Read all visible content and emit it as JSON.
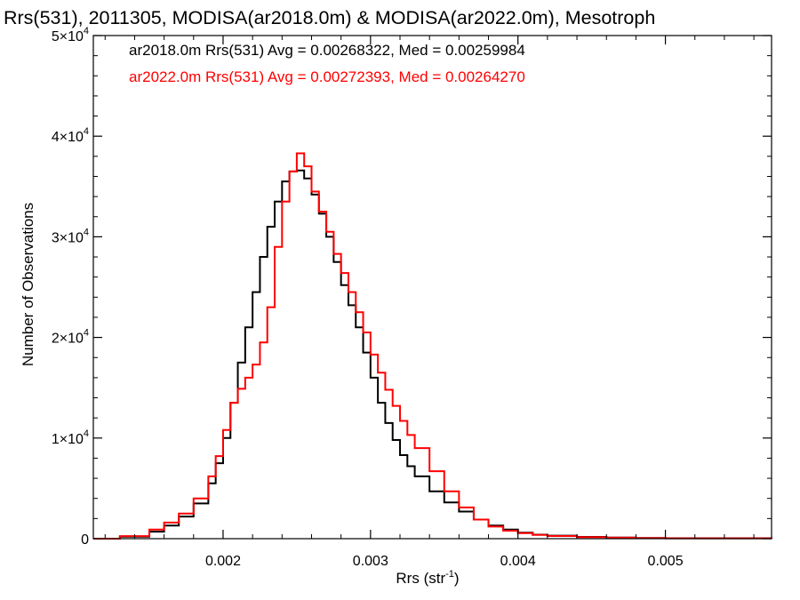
{
  "chart_data": {
    "type": "line",
    "title": "Rrs(531), 2011305, MODISA(ar2018.0m) & MODISA(ar2022.0m), Mesotroph",
    "xlabel": "Rrs (str",
    "xlabel_sup": "-1",
    "xlabel_close": ")",
    "ylabel": "Number of Observations",
    "xlim": [
      0.00112,
      0.00572
    ],
    "ylim": [
      0,
      50000
    ],
    "xticks": [
      {
        "value": 0.002,
        "label": "0.002"
      },
      {
        "value": 0.003,
        "label": "0.003"
      },
      {
        "value": 0.004,
        "label": "0.004"
      },
      {
        "value": 0.005,
        "label": "0.005"
      }
    ],
    "yticks": [
      {
        "value": 0,
        "label": "0"
      },
      {
        "value": 10000,
        "mant": "1×10",
        "exp": "4"
      },
      {
        "value": 20000,
        "mant": "2×10",
        "exp": "4"
      },
      {
        "value": 30000,
        "mant": "3×10",
        "exp": "4"
      },
      {
        "value": 40000,
        "mant": "4×10",
        "exp": "4"
      },
      {
        "value": 50000,
        "mant": "5×10",
        "exp": "4"
      }
    ],
    "grid": false,
    "legend": "top-left",
    "step": true,
    "annotations": [
      {
        "text": "ar2018.0m Rrs(531) Avg = 0.00268322, Med = 0.00259984",
        "color": "#000000"
      },
      {
        "text": "ar2022.0m Rrs(531) Avg = 0.00272393, Med = 0.00264270",
        "color": "#ff0000"
      }
    ],
    "series": [
      {
        "color": "#000000",
        "x": [
          0.00112,
          0.0013,
          0.0015,
          0.0016,
          0.0017,
          0.0018,
          0.0019,
          0.00195,
          0.002,
          0.00205,
          0.0021,
          0.00215,
          0.0022,
          0.00225,
          0.0023,
          0.00235,
          0.0024,
          0.00245,
          0.0025,
          0.00255,
          0.0026,
          0.00265,
          0.0027,
          0.00275,
          0.0028,
          0.00285,
          0.0029,
          0.00295,
          0.003,
          0.00305,
          0.0031,
          0.00315,
          0.0032,
          0.00325,
          0.0033,
          0.0034,
          0.0035,
          0.0036,
          0.0037,
          0.0038,
          0.0039,
          0.004,
          0.0041,
          0.0042,
          0.0044,
          0.0046,
          0.0048,
          0.005,
          0.00572
        ],
        "values": [
          0,
          200,
          700,
          1300,
          2200,
          3500,
          5500,
          7500,
          10000,
          13500,
          17500,
          21000,
          24500,
          28000,
          31000,
          33500,
          35500,
          36500,
          36600,
          35800,
          34200,
          32300,
          30000,
          27500,
          25200,
          23200,
          21000,
          18500,
          16000,
          13500,
          11500,
          9800,
          8300,
          7200,
          6200,
          4700,
          3600,
          2700,
          1900,
          1300,
          900,
          600,
          400,
          300,
          180,
          110,
          70,
          40,
          0
        ]
      },
      {
        "color": "#ff0000",
        "x": [
          0.00112,
          0.0013,
          0.0015,
          0.0016,
          0.0017,
          0.0018,
          0.0019,
          0.00195,
          0.002,
          0.00205,
          0.0021,
          0.00215,
          0.0022,
          0.00225,
          0.0023,
          0.00235,
          0.0024,
          0.00245,
          0.0025,
          0.00255,
          0.0026,
          0.00265,
          0.0027,
          0.00275,
          0.0028,
          0.00285,
          0.0029,
          0.00295,
          0.003,
          0.00305,
          0.0031,
          0.00315,
          0.0032,
          0.00325,
          0.0033,
          0.0034,
          0.0035,
          0.0036,
          0.0037,
          0.0038,
          0.0039,
          0.004,
          0.0041,
          0.0042,
          0.0044,
          0.0046,
          0.0048,
          0.005,
          0.00572
        ],
        "values": [
          0,
          250,
          900,
          1600,
          2500,
          4000,
          6200,
          8200,
          10800,
          13500,
          14900,
          16000,
          17300,
          19500,
          23000,
          29000,
          33500,
          36500,
          38300,
          37000,
          34500,
          32500,
          30500,
          28300,
          26400,
          24500,
          22500,
          20500,
          18300,
          16500,
          14800,
          13200,
          11700,
          10300,
          9000,
          6700,
          4700,
          3100,
          1900,
          1200,
          800,
          550,
          380,
          270,
          160,
          100,
          60,
          30,
          0
        ]
      }
    ]
  }
}
